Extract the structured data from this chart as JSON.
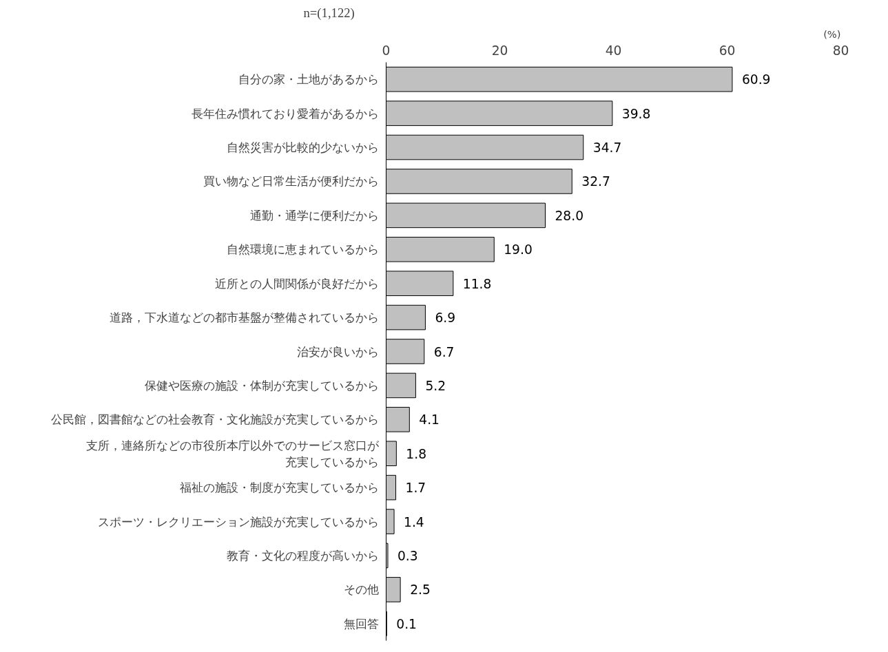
{
  "chart_data": {
    "type": "bar",
    "orientation": "horizontal",
    "categories": [
      "自分の家・土地があるから",
      "長年住み慣れており愛着があるから",
      "自然災害が比較的少ないから",
      "買い物など日常生活が便利だから",
      "通勤・通学に便利だから",
      "自然環境に恵まれているから",
      "近所との人間関係が良好だから",
      "道路，下水道などの都市基盤が整備されているから",
      "治安が良いから",
      "保健や医療の施設・体制が充実しているから",
      "公民館，図書館などの社会教育・文化施設が充実しているから",
      "支所，連絡所などの市役所本庁以外でのサービス窓口が充実しているから",
      "福祉の施設・制度が充実しているから",
      "スポーツ・レクリエーション施設が充実しているから",
      "教育・文化の程度が高いから",
      "その他",
      "無回答"
    ],
    "values": [
      60.9,
      39.8,
      34.7,
      32.7,
      28.0,
      19.0,
      11.8,
      6.9,
      6.7,
      5.2,
      4.1,
      1.8,
      1.7,
      1.4,
      0.3,
      2.5,
      0.1
    ],
    "color": "#c0c0c0",
    "xlim": [
      0,
      80
    ],
    "xticks": [
      0,
      20,
      40,
      60,
      80
    ],
    "xlabel": "(%)",
    "annotations": [
      "n=(1,122)"
    ],
    "value_labels": [
      "60.9",
      "39.8",
      "34.7",
      "32.7",
      "28.0",
      "19.0",
      "11.8",
      "6.9",
      "6.7",
      "5.2",
      "4.1",
      "1.8",
      "1.7",
      "1.4",
      "0.3",
      "2.5",
      "0.1"
    ],
    "grid": false
  }
}
